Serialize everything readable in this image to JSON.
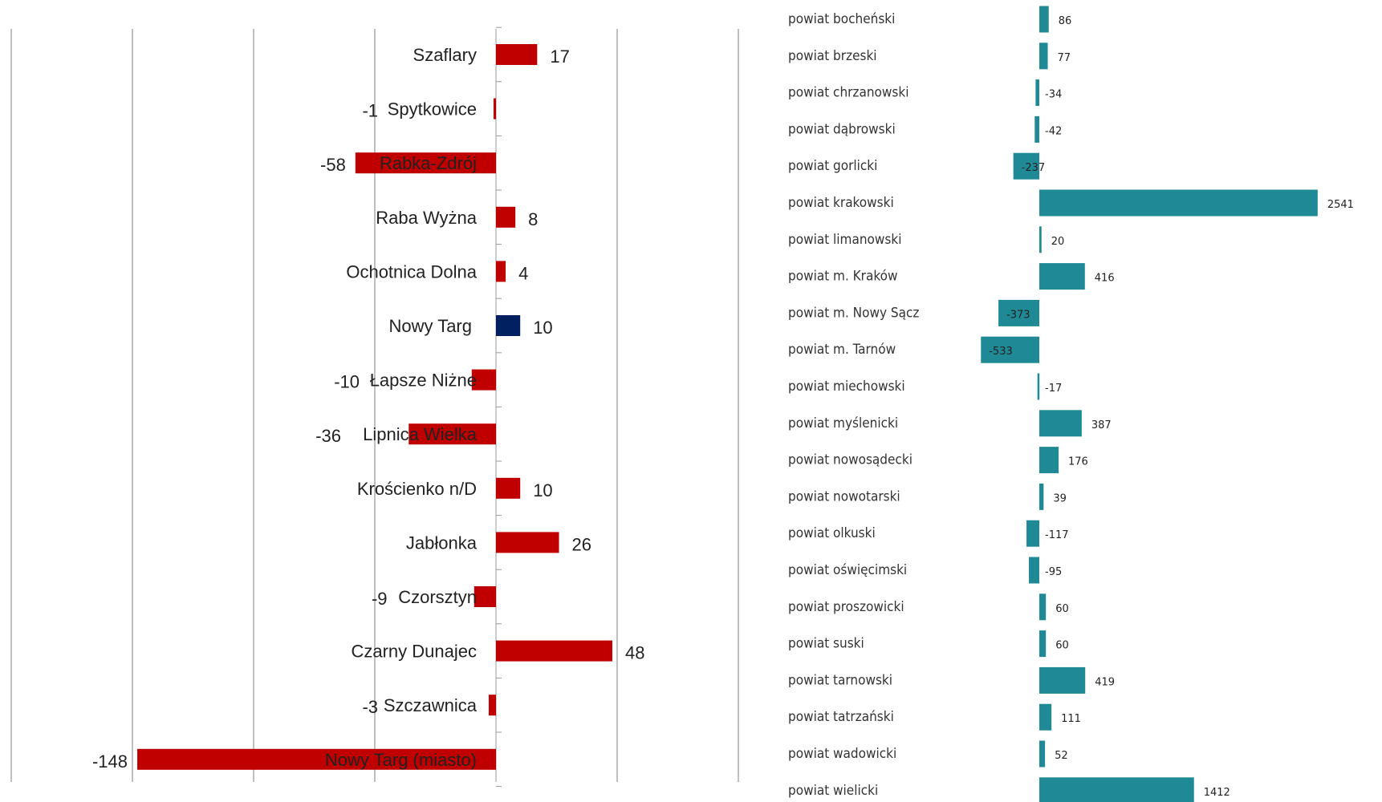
{
  "colors": {
    "left_bar": "#c00000",
    "left_highlight": "#002060",
    "right_bar": "#1f8a96",
    "grid": "#7f7f7f",
    "axis": "#999999"
  },
  "chart_data": [
    {
      "type": "bar",
      "orientation": "horizontal",
      "categories": [
        "Szaflary",
        "Spytkowice",
        "Rabka-Zdrój",
        "Raba Wyżna",
        "Ochotnica Dolna",
        "Nowy Targ",
        "Łapsze Niżne",
        "Lipnica Wielka",
        "Krościenko n/D",
        "Jabłonka",
        "Czorsztyn",
        "Czarny Dunajec",
        "Szczawnica",
        "Nowy Targ (miasto)"
      ],
      "values": [
        17,
        -1,
        -58,
        8,
        4,
        10,
        -10,
        -36,
        10,
        26,
        -9,
        48,
        -3,
        -148
      ],
      "value_labels": [
        "17",
        "-1",
        "-58",
        "8",
        "4",
        "10",
        "-10",
        "-36",
        "10",
        "26",
        "-9",
        "48",
        "-3",
        "-148"
      ],
      "highlight_category": "Nowy Targ",
      "xlim": [
        -200,
        100
      ],
      "grid": true
    },
    {
      "type": "bar",
      "orientation": "horizontal",
      "categories": [
        "powiat bocheński",
        "powiat brzeski",
        "powiat chrzanowski",
        "powiat dąbrowski",
        "powiat gorlicki",
        "powiat krakowski",
        "powiat limanowski",
        "powiat m. Kraków",
        "powiat m. Nowy Sącz",
        "powiat m. Tarnów",
        "powiat miechowski",
        "powiat myślenicki",
        "powiat nowosądecki",
        "powiat nowotarski",
        "powiat olkuski",
        "powiat oświęcimski",
        "powiat proszowicki",
        "powiat suski",
        "powiat tarnowski",
        "powiat tatrzański",
        "powiat wadowicki",
        "powiat wielicki"
      ],
      "values": [
        86,
        77,
        -34,
        -42,
        -237,
        2541,
        20,
        416,
        -373,
        -533,
        -17,
        387,
        176,
        39,
        -117,
        -95,
        60,
        60,
        419,
        111,
        52,
        1412
      ],
      "value_labels": [
        "86",
        "77",
        "-34",
        "-42",
        "-237",
        "2541",
        "20",
        "416",
        "-373",
        "-533",
        "-17",
        "387",
        "176",
        "39",
        "-117",
        "-95",
        "60",
        "60",
        "419",
        "111",
        "52",
        "1412"
      ],
      "grid": false
    }
  ]
}
